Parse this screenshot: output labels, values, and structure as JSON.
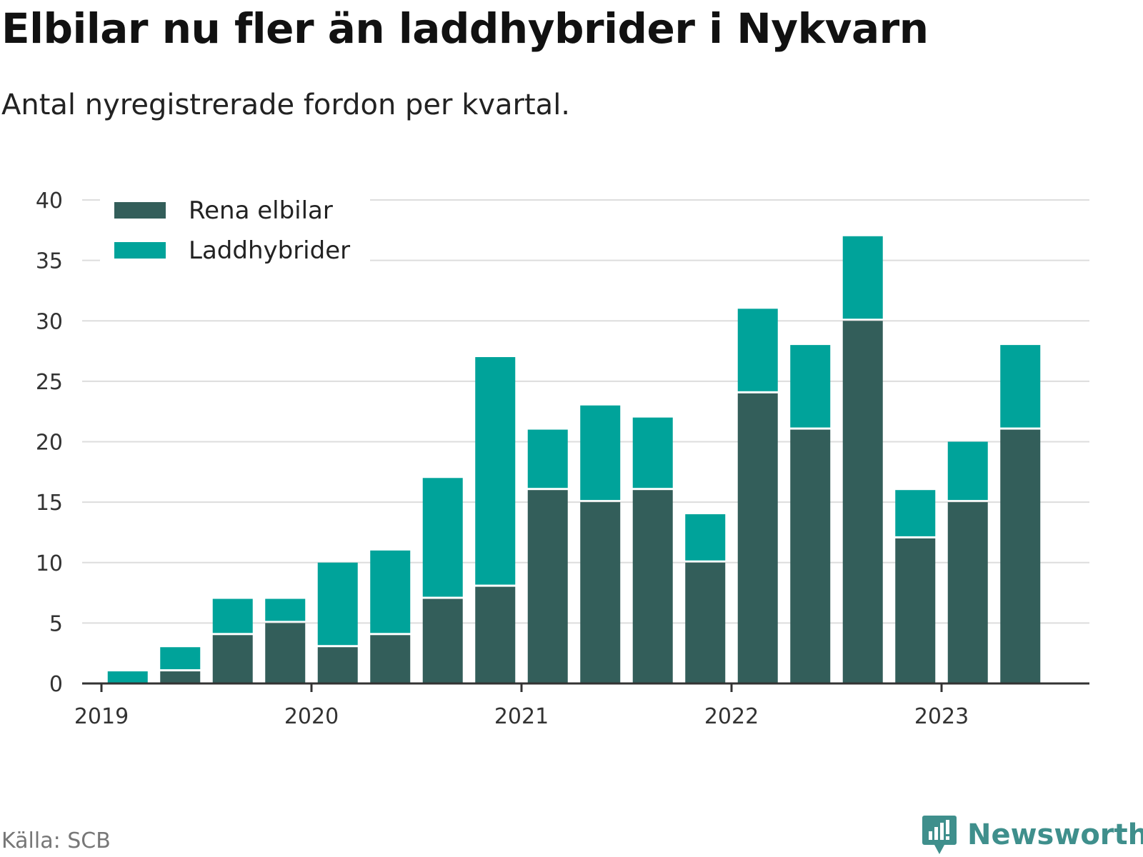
{
  "header": {
    "title": "Elbilar nu fler än laddhybrider i Nykvarn",
    "subtitle": "Antal nyregistrerade fordon per kvartal."
  },
  "footer": {
    "source": "Källa: SCB",
    "brand": "Newsworthy"
  },
  "colors": {
    "electric": "#335e5a",
    "hybrid": "#00a39a",
    "grid": "#dddddd",
    "axis": "#333333",
    "brand": "#3f8f8c"
  },
  "chart_data": {
    "type": "bar",
    "stacked": true,
    "categories": [
      "2019Q1",
      "2019Q2",
      "2019Q3",
      "2019Q4",
      "2020Q1",
      "2020Q2",
      "2020Q3",
      "2020Q4",
      "2021Q1",
      "2021Q2",
      "2021Q3",
      "2021Q4",
      "2022Q1",
      "2022Q2",
      "2022Q3",
      "2022Q4",
      "2023Q1",
      "2023Q2",
      "2023Q3"
    ],
    "series": [
      {
        "name": "Rena elbilar",
        "color": "#335e5a",
        "values": [
          0,
          1,
          4,
          5,
          3,
          4,
          7,
          8,
          16,
          15,
          16,
          10,
          24,
          21,
          30,
          12,
          15,
          21,
          0
        ]
      },
      {
        "name": "Laddhybrider",
        "color": "#00a39a",
        "values": [
          1,
          2,
          3,
          2,
          7,
          7,
          10,
          19,
          5,
          8,
          6,
          4,
          7,
          7,
          7,
          4,
          5,
          7,
          0
        ]
      }
    ],
    "x_ticks": [
      "2019",
      "2020",
      "2021",
      "2022",
      "2023"
    ],
    "y_ticks": [
      0,
      5,
      10,
      15,
      20,
      25,
      30,
      35,
      40
    ],
    "ylim": [
      0,
      40
    ],
    "grid": true,
    "legend_position": "top-left"
  }
}
